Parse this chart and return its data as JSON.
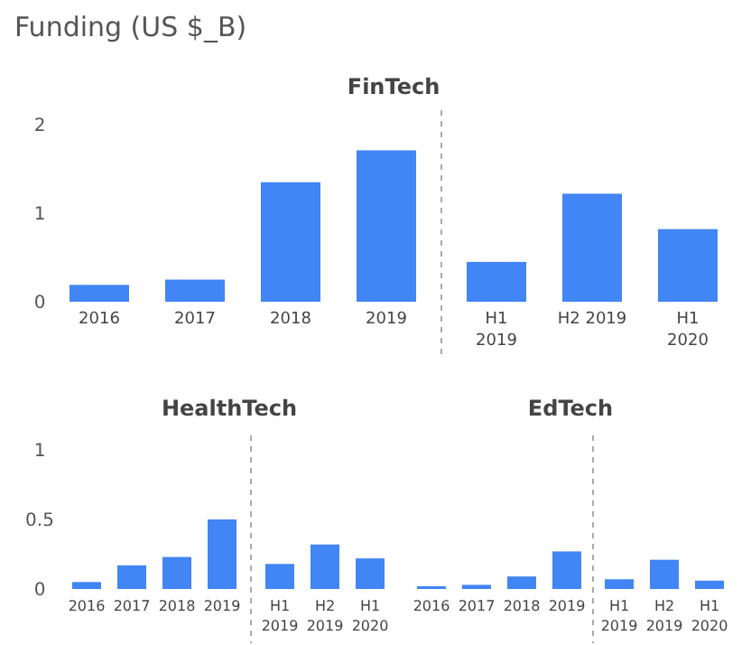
{
  "chart_data": [
    {
      "type": "bar",
      "title": "FinTech",
      "ylabel": "Funding (US $_B)",
      "categories": [
        "2016",
        "2017",
        "2018",
        "2019",
        "H1\n2019",
        "H2 2019",
        "H1\n2020"
      ],
      "values": [
        0.19,
        0.25,
        1.35,
        1.71,
        0.45,
        1.22,
        0.82
      ],
      "color": "#4285f4",
      "ylim": [
        0,
        2
      ],
      "yticks": [
        0,
        1,
        2
      ],
      "grid": false
    },
    {
      "type": "bar",
      "title": "HealthTech",
      "categories": [
        "2016",
        "2017",
        "2018",
        "2019",
        "H1\n2019",
        "H2\n2019",
        "H1\n2020"
      ],
      "values": [
        0.05,
        0.17,
        0.23,
        0.5,
        0.18,
        0.32,
        0.22
      ],
      "color": "#4285f4",
      "ylim": [
        0,
        1
      ],
      "yticks": [
        0,
        0.5,
        1
      ],
      "grid": false
    },
    {
      "type": "bar",
      "title": "EdTech",
      "categories": [
        "2016",
        "2017",
        "2018",
        "2019",
        "H1\n2019",
        "H2\n2019",
        "H1\n2020"
      ],
      "values": [
        0.02,
        0.03,
        0.09,
        0.27,
        0.07,
        0.21,
        0.06
      ],
      "color": "#4285f4",
      "ylim": [
        0,
        1
      ],
      "yticks": [
        0,
        0.5,
        1
      ],
      "grid": false,
      "tick_labels": "x"
    }
  ]
}
